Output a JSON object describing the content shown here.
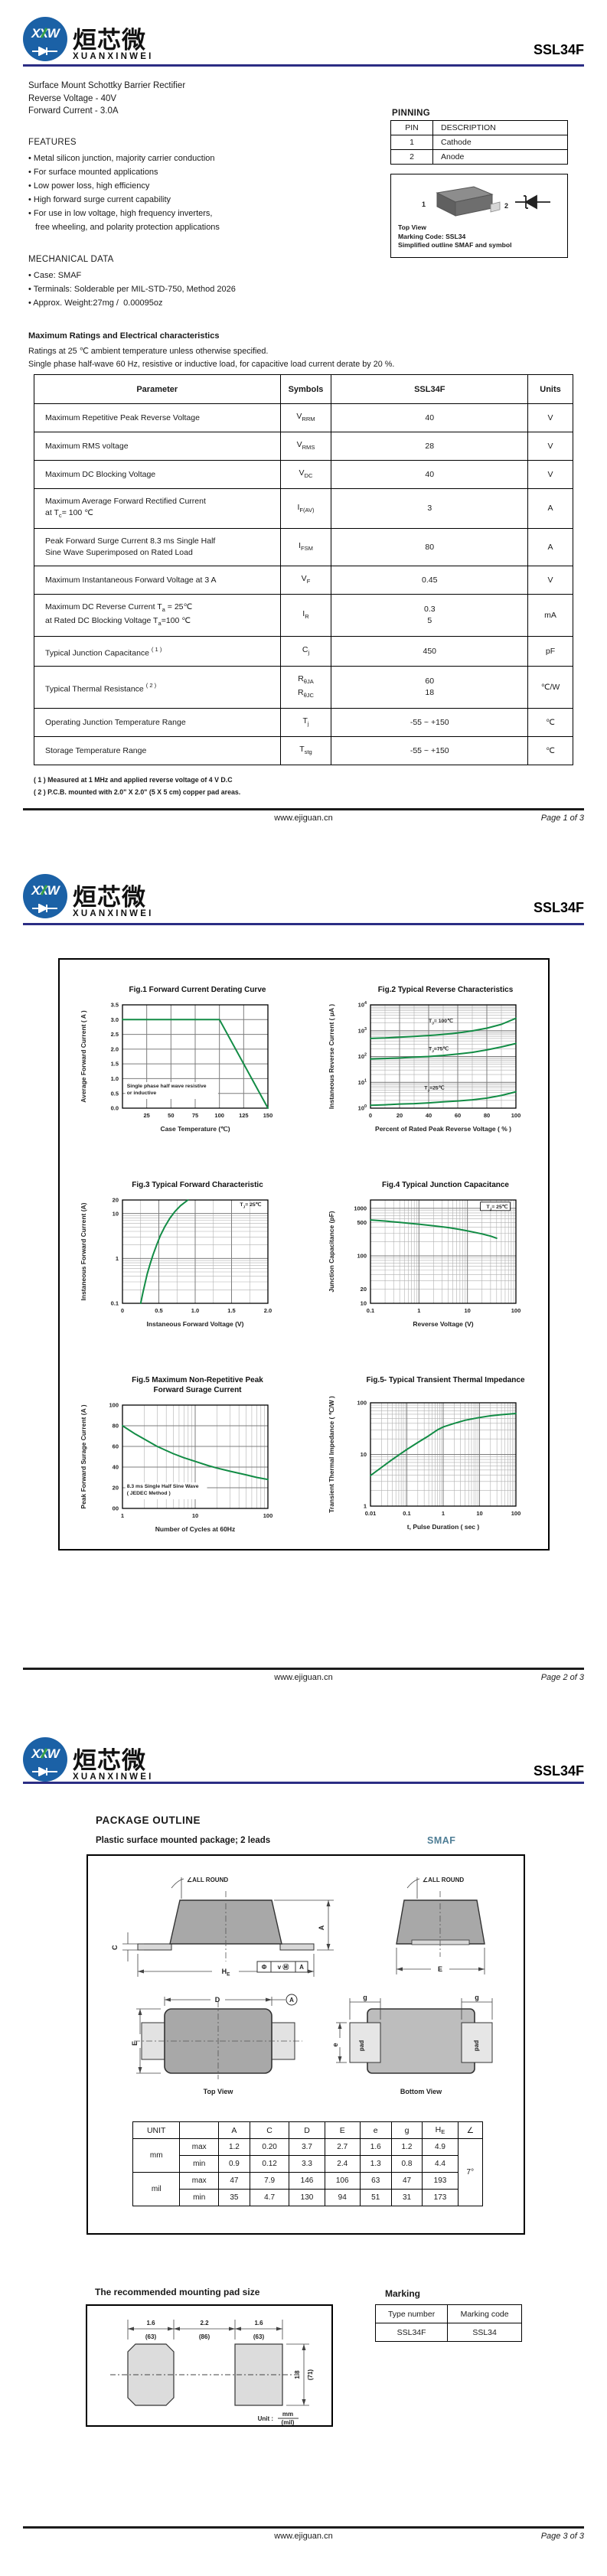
{
  "theme": {
    "navy": "#2b2d84",
    "green": "#128c45",
    "smaf_blue": "#4e7d95",
    "logo_blue": "#1b61a6",
    "logo_green": "#35a048"
  },
  "brand": {
    "monogram": "XXW",
    "name_zh": "烜芯微",
    "name_en": "XUANXINWEI",
    "part": "SSL34F"
  },
  "footer": {
    "url": "www.ejiguan.cn",
    "pages": [
      "Page 1 of 3",
      "Page 2 of 3",
      "Page 3 of 3"
    ]
  },
  "page1": {
    "intro_lines": [
      "Surface Mount Schottky Barrier Rectifier",
      "Reverse Voltage - 40V",
      "Forward Current - 3.0A"
    ],
    "pinning": {
      "title": "PINNING",
      "headers": [
        "PIN",
        "DESCRIPTION"
      ],
      "rows": [
        [
          "1",
          "Cathode"
        ],
        [
          "2",
          "Anode"
        ]
      ]
    },
    "package_preview": {
      "pin_left": "1",
      "pin_right": "2",
      "captions": [
        "Top View",
        "Marking Code: SSL34",
        "Simplified outline SMAF and symbol"
      ]
    },
    "features": {
      "title": "FEATURES",
      "items": [
        "Metal silicon junction, majority carrier conduction",
        "For surface mounted applications",
        "Low power loss, high efficiency",
        "High forward surge current capability",
        "For use in low voltage, high frequency inverters,\nfree wheeling, and polarity protection applications"
      ]
    },
    "mechanical": {
      "title": "MECHANICAL DATA",
      "items": [
        "Case: SMAF",
        "Terminals: Solderable per MIL-STD-750, Method 2026",
        "Approx. Weight:27mg /  0.00095oz"
      ]
    },
    "ratings": {
      "heading": "Maximum Ratings and Electrical characteristics",
      "conditions": [
        "Ratings at 25 ℃ ambient temperature unless otherwise specified.",
        "Single phase half-wave 60 Hz, resistive or inductive load, for capacitive load current derate by 20 %."
      ],
      "headers": [
        "Parameter",
        "Symbols",
        "SSL34F",
        "Units"
      ],
      "rows": [
        {
          "param": "Maximum Repetitive Peak Reverse Voltage",
          "symbol": "V_{RRM}",
          "value": "40",
          "unit": "V"
        },
        {
          "param": "Maximum RMS voltage",
          "symbol": "V_{RMS}",
          "value": "28",
          "unit": "V"
        },
        {
          "param": "Maximum DC Blocking Voltage",
          "symbol": "V_{DC}",
          "value": "40",
          "unit": "V"
        },
        {
          "param": "Maximum Average Forward Rectified Current\nat T_{c}= 100 ℃",
          "symbol": "I_{F(AV)}",
          "value": "3",
          "unit": "A"
        },
        {
          "param": "Peak Forward Surge Current 8.3 ms Single Half\nSine Wave Superimposed on Rated Load",
          "symbol": "I_{FSM}",
          "value": "80",
          "unit": "A"
        },
        {
          "param": "Maximum Instantaneous Forward Voltage at 3 A",
          "symbol": "V_{F}",
          "value": "0.45",
          "unit": "V"
        },
        {
          "param": "Maximum DC Reverse Current      T_{a} = 25℃\nat Rated DC Blocking Voltage      T_{a}=100 ℃",
          "symbol": "I_{R}",
          "value": "0.3\n5",
          "unit": "mA"
        },
        {
          "param": "Typical Junction Capacitance ^{( 1 )}",
          "symbol": "C_{j}",
          "value": "450",
          "unit": "pF"
        },
        {
          "param": "Typical Thermal Resistance ^{( 2 )}",
          "symbol": "R_{θJA}\nR_{θJC}",
          "value": "60\n18",
          "unit": "℃/W"
        },
        {
          "param": "Operating Junction Temperature Range",
          "symbol": "T_{j}",
          "value": "-55 ~ +150",
          "unit": "℃"
        },
        {
          "param": "Storage Temperature Range",
          "symbol": "T_{stg}",
          "value": "-55 ~ +150",
          "unit": "℃"
        }
      ],
      "notes": [
        "( 1 ) Measured at 1 MHz and applied reverse voltage of 4 V D.C",
        "( 2 ) P.C.B. mounted with 2.0\" X 2.0\" (5 X 5 cm) copper pad areas."
      ]
    }
  },
  "chart_data": [
    {
      "type": "line",
      "title_lines": [
        "Fig.1  Forward Current Derating Curve"
      ],
      "xlabel": "Case  Temperature (℃)",
      "ylabel": "Average Forward Current ( A )",
      "xscale": "linear",
      "xlim": [
        0,
        150
      ],
      "xticks": [
        25,
        50,
        75,
        100,
        125,
        150
      ],
      "yscale": "linear",
      "ylim": [
        0,
        3.5
      ],
      "yticks": [
        0,
        0.5,
        1,
        1.5,
        2,
        2.5,
        3,
        3.5
      ],
      "ytick_labels": [
        "0.0",
        "0.5",
        "1.0",
        "1.5",
        "2.0",
        "2.5",
        "3.0",
        "3.5"
      ],
      "series": [
        {
          "label": "",
          "points": [
            [
              0,
              3
            ],
            [
              100,
              3
            ],
            [
              150,
              0
            ]
          ]
        }
      ],
      "annotations": [
        {
          "text": "Single phase half wave resistive\nor inductive",
          "rx": 0.03,
          "ry": 0.8,
          "bg": true
        }
      ]
    },
    {
      "type": "line",
      "title_lines": [
        "Fig.2  Typical Reverse Characteristics"
      ],
      "xlabel": "Percent of Rated Peak Reverse Voltage ( % )",
      "ylabel": "Instaneous Reverse Current ( μA )",
      "xscale": "linear",
      "xlim": [
        0,
        100
      ],
      "xticks": [
        0,
        20,
        40,
        60,
        80,
        100
      ],
      "xminor": 10,
      "yscale": "log",
      "ylim": [
        1,
        10000
      ],
      "yticks": [
        1,
        10,
        100,
        1000,
        10000
      ],
      "ytick_labels": [
        "10^{0}",
        "10^{1}",
        "10^{2}",
        "10^{3}",
        "10^{4}"
      ],
      "series": [
        {
          "label": "T_{J}= 100℃",
          "label_rx": 0.4,
          "label_ry": 0.17,
          "points": [
            [
              0,
              500
            ],
            [
              10,
              520
            ],
            [
              20,
              560
            ],
            [
              30,
              600
            ],
            [
              40,
              650
            ],
            [
              50,
              720
            ],
            [
              60,
              820
            ],
            [
              70,
              980
            ],
            [
              80,
              1250
            ],
            [
              90,
              1750
            ],
            [
              100,
              3000
            ]
          ]
        },
        {
          "label": "T_{J}=75℃",
          "label_rx": 0.4,
          "label_ry": 0.44,
          "points": [
            [
              0,
              80
            ],
            [
              10,
              84
            ],
            [
              20,
              88
            ],
            [
              30,
              94
            ],
            [
              40,
              100
            ],
            [
              50,
              110
            ],
            [
              60,
              125
            ],
            [
              70,
              145
            ],
            [
              80,
              180
            ],
            [
              90,
              235
            ],
            [
              100,
              320
            ]
          ]
        },
        {
          "label": "T_{J}=25℃",
          "label_rx": 0.37,
          "label_ry": 0.82,
          "points": [
            [
              0,
              1.3
            ],
            [
              10,
              1.35
            ],
            [
              20,
              1.45
            ],
            [
              30,
              1.5
            ],
            [
              40,
              1.6
            ],
            [
              50,
              1.75
            ],
            [
              60,
              1.9
            ],
            [
              70,
              2.1
            ],
            [
              80,
              2.45
            ],
            [
              90,
              3.1
            ],
            [
              100,
              4.3
            ]
          ]
        }
      ]
    },
    {
      "type": "line",
      "title_lines": [
        "Fig.3  Typical Forward Characteristic"
      ],
      "xlabel": "Instaneous Forward Voltage (V)",
      "ylabel": "Instaneous Forward Current  (A)",
      "xscale": "linear",
      "xlim": [
        0,
        2
      ],
      "xticks": [
        0,
        0.5,
        1,
        1.5,
        2
      ],
      "xtick_labels": [
        "0",
        "0.5",
        "1.0",
        "1.5",
        "2.0"
      ],
      "xminor": 0.25,
      "yscale": "log",
      "ylim": [
        0.1,
        20
      ],
      "yticks": [
        0.1,
        1,
        10,
        20
      ],
      "ytick_labels": [
        "0.1",
        "1",
        "10",
        "20"
      ],
      "series": [
        {
          "label": "T_{J}= 25℃",
          "label_rx": 0.97,
          "label_ry": 0.06,
          "label_anchor": "end",
          "points": [
            [
              0.25,
              0.1
            ],
            [
              0.28,
              0.17
            ],
            [
              0.31,
              0.28
            ],
            [
              0.34,
              0.45
            ],
            [
              0.38,
              0.75
            ],
            [
              0.42,
              1.2
            ],
            [
              0.47,
              2.0
            ],
            [
              0.52,
              3.2
            ],
            [
              0.58,
              5.0
            ],
            [
              0.65,
              7.8
            ],
            [
              0.72,
              11
            ],
            [
              0.8,
              15
            ],
            [
              0.9,
              20
            ]
          ]
        }
      ]
    },
    {
      "type": "line",
      "title_lines": [
        "Fig.4  Typical Junction Capacitance"
      ],
      "xlabel": "Reverse  Voltage (V)",
      "ylabel": "Junction Capacitance (pF)",
      "xscale": "log",
      "xlim": [
        0.1,
        100
      ],
      "xticks": [
        0.1,
        1,
        10,
        100
      ],
      "xtick_labels": [
        "0.1",
        "1",
        "10",
        "100"
      ],
      "yscale": "log",
      "ylim": [
        10,
        1500
      ],
      "yticks": [
        10,
        20,
        100,
        500,
        1000
      ],
      "ytick_labels": [
        "10",
        "20",
        "100",
        "500",
        "1000"
      ],
      "series": [
        {
          "label": "T_{J}= 25℃",
          "label_rx": 0.96,
          "label_ry": 0.08,
          "label_anchor": "end",
          "label_box": true,
          "points": [
            [
              0.1,
              570
            ],
            [
              0.2,
              540
            ],
            [
              0.4,
              505
            ],
            [
              0.7,
              480
            ],
            [
              1,
              465
            ],
            [
              2,
              430
            ],
            [
              4,
              395
            ],
            [
              7,
              360
            ],
            [
              10,
              335
            ],
            [
              20,
              290
            ],
            [
              30,
              260
            ],
            [
              40,
              235
            ]
          ]
        }
      ]
    },
    {
      "type": "line",
      "title_lines": [
        "Fig.5  Maximum Non-Repetitive Peak",
        "Forward Surage Current"
      ],
      "xlabel": "Number of Cycles at 60Hz",
      "ylabel": "Peak Forward Surage Current (A )",
      "xscale": "log",
      "xlim": [
        1,
        100
      ],
      "xticks": [
        1,
        10,
        100
      ],
      "xtick_labels": [
        "1",
        "10",
        "100"
      ],
      "yscale": "linear",
      "ylim": [
        0,
        100
      ],
      "yticks": [
        0,
        20,
        40,
        60,
        80,
        100
      ],
      "ytick_labels": [
        "00",
        "20",
        "40",
        "60",
        "80",
        "100"
      ],
      "series": [
        {
          "label": "",
          "points": [
            [
              1,
              80
            ],
            [
              1.5,
              72
            ],
            [
              2,
              67
            ],
            [
              3,
              60
            ],
            [
              4,
              56
            ],
            [
              5,
              53
            ],
            [
              7,
              49
            ],
            [
              10,
              45.5
            ],
            [
              15,
              41.5
            ],
            [
              20,
              39
            ],
            [
              30,
              36
            ],
            [
              50,
              32.5
            ],
            [
              70,
              30
            ],
            [
              100,
              28
            ]
          ]
        }
      ],
      "annotations": [
        {
          "text": "8.3 ms Single Half Sine Wave\n( JEDEC Method )",
          "rx": 0.03,
          "ry": 0.8,
          "bg": true
        }
      ]
    },
    {
      "type": "line",
      "title_lines": [
        "Fig.5- Typical Transient Thermal Impedance"
      ],
      "xlabel": "t, Pulse Duration ( sec )",
      "ylabel": "Transient Thermal Impedance ( ℃/W )",
      "xscale": "log",
      "xlim": [
        0.01,
        100
      ],
      "xticks": [
        0.01,
        0.1,
        1,
        10,
        100
      ],
      "xtick_labels": [
        "0.01",
        "0.1",
        "1",
        "10",
        "100"
      ],
      "yscale": "log",
      "ylim": [
        1,
        100
      ],
      "yticks": [
        1,
        10,
        100
      ],
      "ytick_labels": [
        "1",
        "10",
        "100"
      ],
      "series": [
        {
          "label": "",
          "points": [
            [
              0.01,
              3.9
            ],
            [
              0.02,
              5.6
            ],
            [
              0.04,
              8
            ],
            [
              0.07,
              10.5
            ],
            [
              0.1,
              12.5
            ],
            [
              0.2,
              17
            ],
            [
              0.4,
              23
            ],
            [
              0.7,
              30
            ],
            [
              1,
              34
            ],
            [
              2,
              40
            ],
            [
              4,
              46
            ],
            [
              10,
              52
            ],
            [
              20,
              56
            ],
            [
              40,
              59
            ],
            [
              100,
              62
            ]
          ]
        }
      ]
    }
  ],
  "page3": {
    "heading": "PACKAGE  OUTLINE",
    "subheading": "Plastic surface mounted package; 2 leads",
    "package_name": "SMAF",
    "outline": {
      "all_round": "∠ALL ROUND",
      "labels": {
        "A": "A",
        "C": "C",
        "D": "D",
        "E": "E",
        "e": "e",
        "g": "g",
        "HE": "H_{E}",
        "pad": "pad",
        "datum": "A"
      },
      "tol_cells": [
        "Φ",
        "v Ⓜ",
        "A"
      ],
      "captions": {
        "top": "Top View",
        "bottom": "Bottom  View"
      }
    },
    "dim_table": {
      "headers": [
        "UNIT",
        "",
        "A",
        "C",
        "D",
        "E",
        "e",
        "g",
        "H_{E}",
        "∠"
      ],
      "unit_groups": [
        {
          "unit": "mm",
          "rows": [
            {
              "label": "max",
              "values": [
                "1.2",
                "0.20",
                "3.7",
                "2.7",
                "1.6",
                "1.2",
                "4.9"
              ]
            },
            {
              "label": "min",
              "values": [
                "0.9",
                "0.12",
                "3.3",
                "2.4",
                "1.3",
                "0.8",
                "4.4"
              ]
            }
          ]
        },
        {
          "unit": "mil",
          "rows": [
            {
              "label": "max",
              "values": [
                "47",
                "7.9",
                "146",
                "106",
                "63",
                "47",
                "193"
              ]
            },
            {
              "label": "min",
              "values": [
                "35",
                "4.7",
                "130",
                "94",
                "51",
                "31",
                "173"
              ]
            }
          ]
        }
      ],
      "angle": "7°"
    },
    "mounting_pad": {
      "heading": "The recommended mounting pad size",
      "dims": {
        "left_mm": "1.6",
        "left_mil": "(63)",
        "center_mm": "2.2",
        "center_mil": "(86)",
        "right_mm": "1.6",
        "right_mil": "(63)",
        "height_mm": "1.8",
        "height_mil": "(71)"
      },
      "unit_label": "Unit :",
      "unit_num": "mm",
      "unit_den": "(mil)"
    },
    "marking": {
      "heading": "Marking",
      "headers": [
        "Type number",
        "Marking code"
      ],
      "rows": [
        [
          "SSL34F",
          "SSL34"
        ]
      ]
    }
  }
}
